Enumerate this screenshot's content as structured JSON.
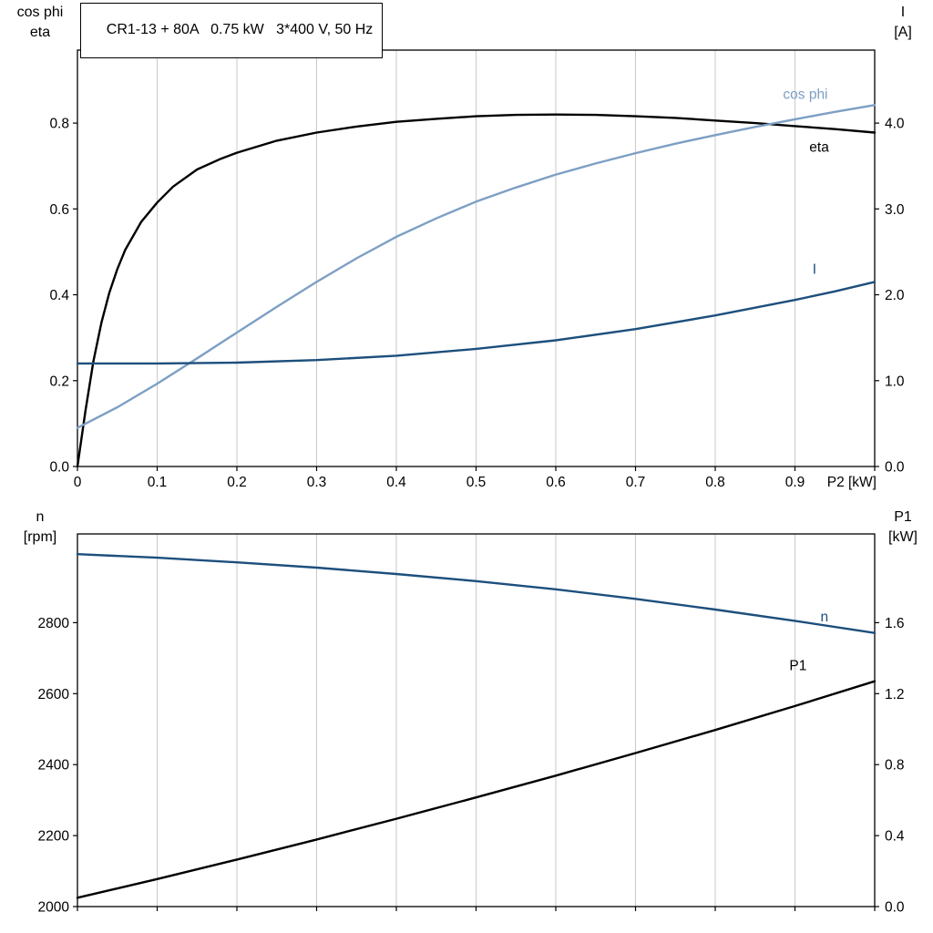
{
  "colors": {
    "background": "#ffffff",
    "frame": "#000000",
    "grid": "#c9c9c9",
    "text": "#000000",
    "eta_black": "#000000",
    "cos_phi_blue": "#7d9fc4",
    "current_blue": "#1c4f7c"
  },
  "chart_data": [
    {
      "type": "line",
      "title": "CR1-13 + 80A   0.75 kW   3*400 V, 50 Hz",
      "xlabel": "P2 [kW]",
      "xlim": [
        0,
        1.0
      ],
      "grid": "vertical",
      "x_ticks": {
        "values": [
          0,
          0.1,
          0.2,
          0.3,
          0.4,
          0.5,
          0.6,
          0.7,
          0.8,
          0.9,
          1.0
        ],
        "labels": [
          "0",
          "0.1",
          "0.2",
          "0.3",
          "0.4",
          "0.5",
          "0.6",
          "0.7",
          "0.8",
          "0.9",
          ""
        ]
      },
      "left_axis": {
        "label_lines": [
          "cos phi",
          "eta"
        ],
        "lim": [
          0,
          0.97
        ],
        "tick_values": [
          0,
          0.2,
          0.4,
          0.6,
          0.8
        ],
        "tick_labels": [
          "0.0",
          "0.2",
          "0.4",
          "0.6",
          "0.8"
        ]
      },
      "right_axis": {
        "label_lines": [
          "I",
          "[A]"
        ],
        "lim": [
          0,
          4.85
        ],
        "tick_values": [
          0,
          1,
          2,
          3,
          4
        ],
        "tick_labels": [
          "0.0",
          "1.0",
          "2.0",
          "3.0",
          "4.0"
        ]
      },
      "series": [
        {
          "name": "eta",
          "axis": "left",
          "color": "#000000",
          "points": [
            [
              0,
              0
            ],
            [
              0.01,
              0.13
            ],
            [
              0.02,
              0.245
            ],
            [
              0.03,
              0.335
            ],
            [
              0.04,
              0.405
            ],
            [
              0.05,
              0.46
            ],
            [
              0.06,
              0.505
            ],
            [
              0.08,
              0.57
            ],
            [
              0.1,
              0.615
            ],
            [
              0.12,
              0.652
            ],
            [
              0.15,
              0.692
            ],
            [
              0.18,
              0.717
            ],
            [
              0.2,
              0.731
            ],
            [
              0.25,
              0.759
            ],
            [
              0.3,
              0.778
            ],
            [
              0.35,
              0.792
            ],
            [
              0.4,
              0.803
            ],
            [
              0.45,
              0.81
            ],
            [
              0.5,
              0.816
            ],
            [
              0.55,
              0.819
            ],
            [
              0.6,
              0.82
            ],
            [
              0.65,
              0.819
            ],
            [
              0.7,
              0.816
            ],
            [
              0.75,
              0.812
            ],
            [
              0.8,
              0.806
            ],
            [
              0.85,
              0.8
            ],
            [
              0.9,
              0.793
            ],
            [
              0.95,
              0.786
            ],
            [
              1.0,
              0.778
            ]
          ]
        },
        {
          "name": "cos phi",
          "axis": "left",
          "color": "#7d9fc4",
          "points": [
            [
              0,
              0.09
            ],
            [
              0.05,
              0.138
            ],
            [
              0.1,
              0.193
            ],
            [
              0.15,
              0.252
            ],
            [
              0.2,
              0.312
            ],
            [
              0.25,
              0.372
            ],
            [
              0.3,
              0.43
            ],
            [
              0.35,
              0.485
            ],
            [
              0.4,
              0.535
            ],
            [
              0.45,
              0.578
            ],
            [
              0.5,
              0.617
            ],
            [
              0.55,
              0.65
            ],
            [
              0.6,
              0.68
            ],
            [
              0.65,
              0.706
            ],
            [
              0.7,
              0.73
            ],
            [
              0.75,
              0.752
            ],
            [
              0.8,
              0.772
            ],
            [
              0.85,
              0.791
            ],
            [
              0.9,
              0.809
            ],
            [
              0.95,
              0.826
            ],
            [
              1.0,
              0.842
            ]
          ]
        },
        {
          "name": "I",
          "axis": "right",
          "color": "#1c4f7c",
          "points": [
            [
              0,
              1.2
            ],
            [
              0.1,
              1.2
            ],
            [
              0.2,
              1.21
            ],
            [
              0.3,
              1.24
            ],
            [
              0.4,
              1.29
            ],
            [
              0.5,
              1.37
            ],
            [
              0.6,
              1.47
            ],
            [
              0.7,
              1.6
            ],
            [
              0.8,
              1.76
            ],
            [
              0.9,
              1.94
            ],
            [
              0.95,
              2.04
            ],
            [
              1.0,
              2.15
            ]
          ]
        }
      ],
      "annotations": [
        {
          "text": "cos phi",
          "axis": "left",
          "x": 0.885,
          "y": 0.868,
          "color": "#7d9fc4"
        },
        {
          "text": "eta",
          "axis": "left",
          "x": 0.918,
          "y": 0.745,
          "color": "#000000"
        },
        {
          "text": "I",
          "axis": "right",
          "x": 0.922,
          "y": 2.3,
          "color": "#1c4f7c"
        }
      ]
    },
    {
      "type": "line",
      "title": "",
      "xlabel": "",
      "xlim": [
        0,
        1.0
      ],
      "grid": "vertical",
      "x_ticks": {
        "values": [
          0,
          0.1,
          0.2,
          0.3,
          0.4,
          0.5,
          0.6,
          0.7,
          0.8,
          0.9,
          1.0
        ],
        "labels": [
          "",
          "",
          "",
          "",
          "",
          "",
          "",
          "",
          "",
          "",
          ""
        ]
      },
      "left_axis": {
        "label_lines": [
          "n",
          "[rpm]"
        ],
        "lim": [
          2000,
          3050
        ],
        "tick_values": [
          2000,
          2200,
          2400,
          2600,
          2800
        ],
        "tick_labels": [
          "2000",
          "2200",
          "2400",
          "2600",
          "2800"
        ]
      },
      "right_axis": {
        "label_lines": [
          "P1",
          "[kW]"
        ],
        "lim": [
          0,
          2.1
        ],
        "tick_values": [
          0,
          0.4,
          0.8,
          1.2,
          1.6
        ],
        "tick_labels": [
          "0.0",
          "0.4",
          "0.8",
          "1.2",
          "1.6"
        ]
      },
      "series": [
        {
          "name": "n",
          "axis": "left",
          "color": "#1c4f7c",
          "points": [
            [
              0,
              2993
            ],
            [
              0.1,
              2983
            ],
            [
              0.2,
              2970
            ],
            [
              0.3,
              2955
            ],
            [
              0.4,
              2937
            ],
            [
              0.5,
              2917
            ],
            [
              0.6,
              2894
            ],
            [
              0.7,
              2867
            ],
            [
              0.8,
              2837
            ],
            [
              0.9,
              2805
            ],
            [
              1.0,
              2771
            ]
          ]
        },
        {
          "name": "P1",
          "axis": "right",
          "color": "#000000",
          "points": [
            [
              0,
              0.05
            ],
            [
              0.1,
              0.155
            ],
            [
              0.2,
              0.265
            ],
            [
              0.3,
              0.378
            ],
            [
              0.4,
              0.495
            ],
            [
              0.5,
              0.615
            ],
            [
              0.6,
              0.738
            ],
            [
              0.7,
              0.865
            ],
            [
              0.8,
              0.995
            ],
            [
              0.9,
              1.13
            ],
            [
              1.0,
              1.27
            ]
          ]
        }
      ],
      "annotations": [
        {
          "text": "n",
          "axis": "left",
          "x": 0.932,
          "y": 2818,
          "color": "#1c4f7c"
        },
        {
          "text": "P1",
          "axis": "right",
          "x": 0.893,
          "y": 1.36,
          "color": "#000000"
        }
      ]
    }
  ]
}
